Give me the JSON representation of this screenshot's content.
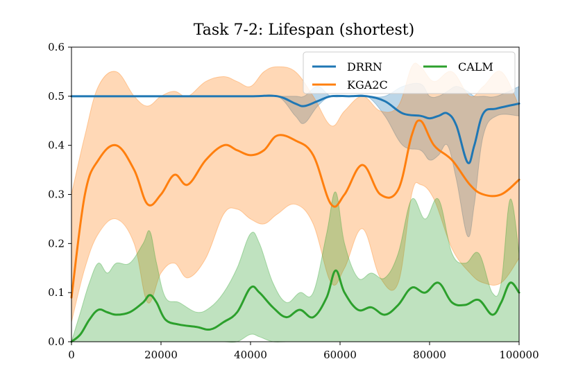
{
  "chart_data": {
    "type": "line",
    "title": "Task 7-2: Lifespan (shortest)",
    "xlabel": "",
    "ylabel": "",
    "xlim": [
      0,
      100000
    ],
    "ylim": [
      0,
      0.6
    ],
    "xticks": [
      0,
      20000,
      40000,
      60000,
      80000,
      100000
    ],
    "xtick_labels": [
      "0",
      "20000",
      "40000",
      "60000",
      "80000",
      "100000"
    ],
    "yticks": [
      0,
      0.1,
      0.2,
      0.3,
      0.4,
      0.5,
      0.6
    ],
    "ytick_labels": [
      "0.0",
      "0.1",
      "0.2",
      "0.3",
      "0.4",
      "0.5",
      "0.6"
    ],
    "grid": false,
    "legend_position": "top-right",
    "series": [
      {
        "name": "DRRN",
        "color": "#1f77b4",
        "x": [
          0,
          10000,
          20000,
          30000,
          40000,
          46000,
          50000,
          52000,
          55000,
          58000,
          62000,
          66000,
          70000,
          74000,
          78000,
          80000,
          82000,
          84000,
          86000,
          88500,
          90000,
          92000,
          95000,
          100000
        ],
        "values": [
          0.5,
          0.5,
          0.5,
          0.5,
          0.5,
          0.5,
          0.485,
          0.48,
          0.49,
          0.5,
          0.5,
          0.5,
          0.49,
          0.465,
          0.46,
          0.455,
          0.46,
          0.465,
          0.44,
          0.365,
          0.4,
          0.465,
          0.475,
          0.485
        ],
        "upper": [
          0.5,
          0.5,
          0.5,
          0.5,
          0.5,
          0.5,
          0.5,
          0.5,
          0.52,
          0.5,
          0.5,
          0.5,
          0.5,
          0.52,
          0.525,
          0.5,
          0.5,
          0.51,
          0.52,
          0.51,
          0.5,
          0.5,
          0.5,
          0.52
        ],
        "lower": [
          0.5,
          0.5,
          0.5,
          0.5,
          0.5,
          0.5,
          0.46,
          0.445,
          0.48,
          0.5,
          0.5,
          0.5,
          0.46,
          0.4,
          0.39,
          0.37,
          0.38,
          0.4,
          0.33,
          0.215,
          0.28,
          0.42,
          0.46,
          0.46
        ]
      },
      {
        "name": "KGA2C",
        "color": "#ff7f0e",
        "x": [
          0,
          3000,
          6000,
          10000,
          14000,
          17000,
          20000,
          23000,
          26000,
          30000,
          34000,
          37000,
          40000,
          43000,
          46000,
          50000,
          54000,
          58000,
          61000,
          65000,
          69000,
          73000,
          76000,
          78000,
          81000,
          85000,
          89000,
          92000,
          96000,
          100000
        ],
        "values": [
          0.09,
          0.3,
          0.37,
          0.4,
          0.35,
          0.28,
          0.3,
          0.34,
          0.32,
          0.37,
          0.4,
          0.39,
          0.38,
          0.39,
          0.42,
          0.41,
          0.38,
          0.28,
          0.3,
          0.36,
          0.3,
          0.31,
          0.42,
          0.45,
          0.4,
          0.37,
          0.32,
          0.3,
          0.3,
          0.33
        ],
        "upper": [
          0.3,
          0.42,
          0.52,
          0.55,
          0.5,
          0.48,
          0.5,
          0.51,
          0.5,
          0.53,
          0.54,
          0.53,
          0.52,
          0.55,
          0.56,
          0.55,
          0.5,
          0.44,
          0.47,
          0.5,
          0.47,
          0.48,
          0.56,
          0.56,
          0.53,
          0.55,
          0.5,
          0.52,
          0.55,
          0.48
        ],
        "lower": [
          0.04,
          0.15,
          0.22,
          0.25,
          0.2,
          0.08,
          0.14,
          0.16,
          0.13,
          0.17,
          0.26,
          0.27,
          0.25,
          0.24,
          0.26,
          0.28,
          0.24,
          0.12,
          0.15,
          0.23,
          0.13,
          0.12,
          0.3,
          0.32,
          0.29,
          0.19,
          0.14,
          0.12,
          0.12,
          0.17
        ]
      },
      {
        "name": "CALM",
        "color": "#2ca02c",
        "x": [
          0,
          2000,
          4000,
          6000,
          8000,
          10000,
          13000,
          16000,
          17500,
          19000,
          21000,
          24000,
          28000,
          31000,
          34000,
          37000,
          40000,
          42000,
          45000,
          48000,
          51000,
          54000,
          57000,
          59000,
          61000,
          64000,
          67000,
          70000,
          73000,
          76000,
          79000,
          82000,
          85000,
          88000,
          91000,
          94000,
          96000,
          98000,
          100000
        ],
        "values": [
          0.0,
          0.015,
          0.045,
          0.065,
          0.06,
          0.055,
          0.06,
          0.08,
          0.095,
          0.08,
          0.045,
          0.035,
          0.03,
          0.025,
          0.04,
          0.06,
          0.11,
          0.1,
          0.07,
          0.05,
          0.065,
          0.05,
          0.09,
          0.145,
          0.1,
          0.065,
          0.07,
          0.055,
          0.075,
          0.11,
          0.1,
          0.12,
          0.08,
          0.075,
          0.085,
          0.055,
          0.08,
          0.12,
          0.1
        ],
        "upper": [
          0.0,
          0.06,
          0.12,
          0.16,
          0.14,
          0.16,
          0.16,
          0.2,
          0.225,
          0.16,
          0.09,
          0.08,
          0.06,
          0.07,
          0.1,
          0.15,
          0.22,
          0.2,
          0.12,
          0.08,
          0.1,
          0.1,
          0.22,
          0.305,
          0.2,
          0.13,
          0.14,
          0.13,
          0.18,
          0.29,
          0.25,
          0.29,
          0.18,
          0.16,
          0.18,
          0.1,
          0.12,
          0.29,
          0.18
        ],
        "lower": [
          0.0,
          0.0,
          0.0,
          0.0,
          0.0,
          0.0,
          0.0,
          0.0,
          0.0,
          0.0,
          0.0,
          0.0,
          0.0,
          0.0,
          0.0,
          0.0,
          0.015,
          0.01,
          0.0,
          0.0,
          0.0,
          0.0,
          0.0,
          0.0,
          0.0,
          0.0,
          0.0,
          0.0,
          0.0,
          0.0,
          0.0,
          0.0,
          0.0,
          0.0,
          0.0,
          0.0,
          0.0,
          0.0,
          0.0
        ]
      }
    ]
  }
}
